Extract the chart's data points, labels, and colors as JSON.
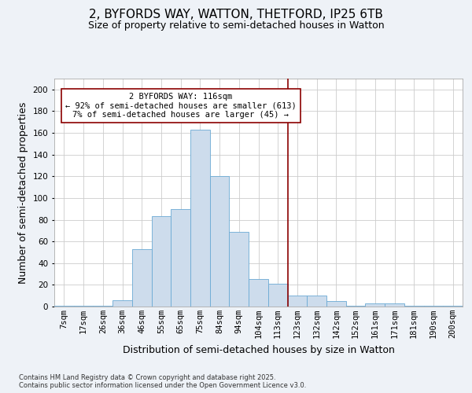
{
  "title": "2, BYFORDS WAY, WATTON, THETFORD, IP25 6TB",
  "subtitle": "Size of property relative to semi-detached houses in Watton",
  "xlabel": "Distribution of semi-detached houses by size in Watton",
  "ylabel": "Number of semi-detached properties",
  "footer": "Contains HM Land Registry data © Crown copyright and database right 2025.\nContains public sector information licensed under the Open Government Licence v3.0.",
  "bar_labels": [
    "7sqm",
    "17sqm",
    "26sqm",
    "36sqm",
    "46sqm",
    "55sqm",
    "65sqm",
    "75sqm",
    "84sqm",
    "94sqm",
    "104sqm",
    "113sqm",
    "123sqm",
    "132sqm",
    "142sqm",
    "152sqm",
    "161sqm",
    "171sqm",
    "181sqm",
    "190sqm",
    "200sqm"
  ],
  "bar_values": [
    1,
    1,
    1,
    6,
    53,
    83,
    90,
    163,
    120,
    69,
    25,
    21,
    10,
    10,
    5,
    1,
    3,
    3,
    1,
    1,
    1
  ],
  "bar_color": "#cddcec",
  "bar_edge_color": "#6aaad4",
  "vline_color": "#8b0000",
  "annotation_title": "2 BYFORDS WAY: 116sqm",
  "annotation_line1": "← 92% of semi-detached houses are smaller (613)",
  "annotation_line2": "7% of semi-detached houses are larger (45) →",
  "annotation_box_color": "#8b0000",
  "ylim": [
    0,
    210
  ],
  "yticks": [
    0,
    20,
    40,
    60,
    80,
    100,
    120,
    140,
    160,
    180,
    200
  ],
  "bg_color": "#eef2f7",
  "plot_bg_color": "#ffffff",
  "grid_color": "#cccccc",
  "title_fontsize": 11,
  "subtitle_fontsize": 9,
  "axis_label_fontsize": 9,
  "tick_fontsize": 7.5,
  "annotation_fontsize": 7.5,
  "footer_fontsize": 6
}
